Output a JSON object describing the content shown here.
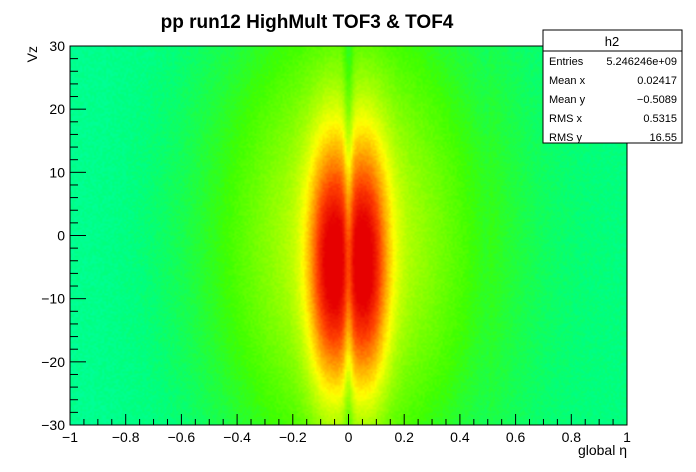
{
  "chart_data": {
    "type": "heatmap",
    "title": "pp run12 HighMult TOF3 & TOF4",
    "xlabel": "global η",
    "ylabel": "Vz",
    "xlim": [
      -1,
      1
    ],
    "ylim": [
      -30,
      30
    ],
    "x_ticks": [
      -1,
      -0.8,
      -0.6,
      -0.4,
      -0.2,
      0,
      0.2,
      0.4,
      0.6,
      0.8,
      1
    ],
    "x_tick_labels": [
      "−1",
      "−0.8",
      "−0.6",
      "−0.4",
      "−0.2",
      "0",
      "0.2",
      "0.4",
      "0.6",
      "0.8",
      "1"
    ],
    "y_ticks": [
      -30,
      -20,
      -10,
      0,
      10,
      20,
      30
    ],
    "y_tick_labels": [
      "−30",
      "−20",
      "−10",
      "0",
      "10",
      "20",
      "30"
    ],
    "color_scale": [
      "#00ffee",
      "#00ff80",
      "#40ff00",
      "#a0ff00",
      "#ffff00",
      "#ffa000",
      "#ff4000",
      "#e60000"
    ],
    "lobes": [
      {
        "eta": -0.065,
        "vz": -5,
        "rel_intensity": 1.0
      },
      {
        "eta": 0.065,
        "vz": -5,
        "rel_intensity": 1.0
      }
    ],
    "step_at_eta": 0.5,
    "stats": {
      "name": "h2",
      "rows": [
        {
          "label": "Entries",
          "value": "5.246246e+09"
        },
        {
          "label": "Mean x",
          "value": "0.02417"
        },
        {
          "label": "Mean y",
          "value": "−0.5089"
        },
        {
          "label": "RMS x",
          "value": "0.5315"
        },
        {
          "label": "RMS y",
          "value": "16.55"
        }
      ]
    }
  }
}
